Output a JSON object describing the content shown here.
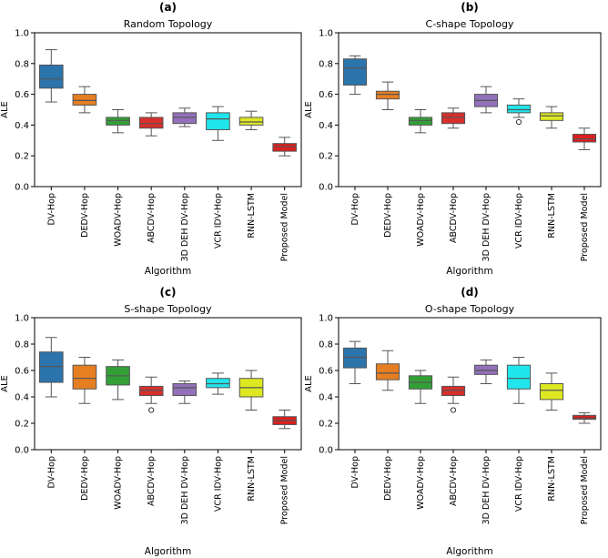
{
  "figure": {
    "type": "box"
  },
  "chart_data": [
    {
      "type": "box",
      "panel_label": "(a)",
      "title": "Random Topology",
      "xlabel": "Algorithm",
      "ylabel": "ALE",
      "ylim": [
        0,
        1.0
      ],
      "yticks": [
        "0.0",
        "0.2",
        "0.4",
        "0.6",
        "0.8",
        "1.0"
      ],
      "categories": [
        "DV-Hop",
        "DEDV-Hop",
        "WOADV-Hop",
        "ABCDV-Hop",
        "3D DEH DV-Hop",
        "VCR IDV-Hop",
        "RNN-LSTM",
        "Proposed Model"
      ],
      "boxes": [
        {
          "min": 0.55,
          "q1": 0.64,
          "median": 0.7,
          "q3": 0.79,
          "max": 0.89,
          "outliers": []
        },
        {
          "min": 0.48,
          "q1": 0.53,
          "median": 0.56,
          "q3": 0.6,
          "max": 0.65,
          "outliers": []
        },
        {
          "min": 0.35,
          "q1": 0.4,
          "median": 0.43,
          "q3": 0.45,
          "max": 0.5,
          "outliers": []
        },
        {
          "min": 0.33,
          "q1": 0.38,
          "median": 0.41,
          "q3": 0.45,
          "max": 0.48,
          "outliers": []
        },
        {
          "min": 0.39,
          "q1": 0.41,
          "median": 0.45,
          "q3": 0.48,
          "max": 0.51,
          "outliers": []
        },
        {
          "min": 0.3,
          "q1": 0.37,
          "median": 0.44,
          "q3": 0.48,
          "max": 0.52,
          "outliers": []
        },
        {
          "min": 0.37,
          "q1": 0.4,
          "median": 0.42,
          "q3": 0.45,
          "max": 0.49,
          "outliers": []
        },
        {
          "min": 0.2,
          "q1": 0.23,
          "median": 0.26,
          "q3": 0.28,
          "max": 0.32,
          "outliers": []
        }
      ]
    },
    {
      "type": "box",
      "panel_label": "(b)",
      "title": "C-shape Topology",
      "xlabel": "Algorithm",
      "ylabel": "ALE",
      "ylim": [
        0,
        1.0
      ],
      "yticks": [
        "0.0",
        "0.2",
        "0.4",
        "0.6",
        "0.8",
        "1.0"
      ],
      "categories": [
        "DV-Hop",
        "DEDV-Hop",
        "WOADV-Hop",
        "ABCDV-Hop",
        "3D DEH DV-Hop",
        "VCR IDV-Hop",
        "RNN-LSTM",
        "Proposed Model"
      ],
      "boxes": [
        {
          "min": 0.6,
          "q1": 0.66,
          "median": 0.77,
          "q3": 0.83,
          "max": 0.85,
          "outliers": []
        },
        {
          "min": 0.5,
          "q1": 0.57,
          "median": 0.6,
          "q3": 0.62,
          "max": 0.68,
          "outliers": []
        },
        {
          "min": 0.35,
          "q1": 0.4,
          "median": 0.43,
          "q3": 0.45,
          "max": 0.5,
          "outliers": []
        },
        {
          "min": 0.38,
          "q1": 0.41,
          "median": 0.45,
          "q3": 0.48,
          "max": 0.51,
          "outliers": []
        },
        {
          "min": 0.48,
          "q1": 0.52,
          "median": 0.56,
          "q3": 0.6,
          "max": 0.65,
          "outliers": []
        },
        {
          "min": 0.45,
          "q1": 0.48,
          "median": 0.5,
          "q3": 0.53,
          "max": 0.57,
          "outliers": [
            0.42
          ]
        },
        {
          "min": 0.38,
          "q1": 0.43,
          "median": 0.46,
          "q3": 0.48,
          "max": 0.52,
          "outliers": []
        },
        {
          "min": 0.24,
          "q1": 0.29,
          "median": 0.31,
          "q3": 0.34,
          "max": 0.38,
          "outliers": []
        }
      ]
    },
    {
      "type": "box",
      "panel_label": "(c)",
      "title": "S-shape Topology",
      "xlabel": "Algorithm",
      "ylabel": "ALE",
      "ylim": [
        0,
        1.0
      ],
      "yticks": [
        "0.0",
        "0.2",
        "0.4",
        "0.6",
        "0.8",
        "1.0"
      ],
      "categories": [
        "DV-Hop",
        "DEDV-Hop",
        "WOADV-Hop",
        "ABCDV-Hop",
        "3D DEH DV-Hop",
        "VCR IDV-Hop",
        "RNN-LSTM",
        "Proposed Model"
      ],
      "boxes": [
        {
          "min": 0.4,
          "q1": 0.51,
          "median": 0.63,
          "q3": 0.74,
          "max": 0.85,
          "outliers": []
        },
        {
          "min": 0.35,
          "q1": 0.46,
          "median": 0.54,
          "q3": 0.64,
          "max": 0.7,
          "outliers": []
        },
        {
          "min": 0.38,
          "q1": 0.49,
          "median": 0.56,
          "q3": 0.63,
          "max": 0.68,
          "outliers": []
        },
        {
          "min": 0.35,
          "q1": 0.41,
          "median": 0.45,
          "q3": 0.48,
          "max": 0.55,
          "outliers": [
            0.3
          ]
        },
        {
          "min": 0.35,
          "q1": 0.41,
          "median": 0.47,
          "q3": 0.5,
          "max": 0.52,
          "outliers": []
        },
        {
          "min": 0.42,
          "q1": 0.47,
          "median": 0.5,
          "q3": 0.54,
          "max": 0.58,
          "outliers": []
        },
        {
          "min": 0.3,
          "q1": 0.4,
          "median": 0.47,
          "q3": 0.54,
          "max": 0.6,
          "outliers": []
        },
        {
          "min": 0.16,
          "q1": 0.19,
          "median": 0.22,
          "q3": 0.25,
          "max": 0.3,
          "outliers": []
        }
      ]
    },
    {
      "type": "box",
      "panel_label": "(d)",
      "title": "O-shape Topology",
      "xlabel": "Algorithm",
      "ylabel": "ALE",
      "ylim": [
        0,
        1.0
      ],
      "yticks": [
        "0.0",
        "0.2",
        "0.4",
        "0.6",
        "0.8",
        "1.0"
      ],
      "categories": [
        "DV-Hop",
        "DEDV-Hop",
        "WOADV-Hop",
        "ABCDV-Hop",
        "3D DEH DV-Hop",
        "VCR IDV-Hop",
        "RNN-LSTM",
        "Proposed Model"
      ],
      "boxes": [
        {
          "min": 0.5,
          "q1": 0.62,
          "median": 0.7,
          "q3": 0.77,
          "max": 0.82,
          "outliers": []
        },
        {
          "min": 0.45,
          "q1": 0.53,
          "median": 0.58,
          "q3": 0.65,
          "max": 0.75,
          "outliers": []
        },
        {
          "min": 0.35,
          "q1": 0.46,
          "median": 0.51,
          "q3": 0.56,
          "max": 0.6,
          "outliers": []
        },
        {
          "min": 0.35,
          "q1": 0.41,
          "median": 0.45,
          "q3": 0.48,
          "max": 0.55,
          "outliers": [
            0.3
          ]
        },
        {
          "min": 0.5,
          "q1": 0.57,
          "median": 0.6,
          "q3": 0.64,
          "max": 0.68,
          "outliers": []
        },
        {
          "min": 0.35,
          "q1": 0.46,
          "median": 0.54,
          "q3": 0.64,
          "max": 0.7,
          "outliers": []
        },
        {
          "min": 0.3,
          "q1": 0.38,
          "median": 0.45,
          "q3": 0.5,
          "max": 0.58,
          "outliers": []
        },
        {
          "min": 0.2,
          "q1": 0.23,
          "median": 0.24,
          "q3": 0.26,
          "max": 0.28,
          "outliers": []
        }
      ]
    }
  ],
  "colors": {
    "series": [
      "#2b74ac",
      "#e67e22",
      "#33a037",
      "#d62f2d",
      "#9270ba",
      "#1fe6ec",
      "#dde821",
      "#dc1f1f"
    ],
    "axis": "#000000",
    "whisker": "#555555",
    "median": "#555555"
  }
}
